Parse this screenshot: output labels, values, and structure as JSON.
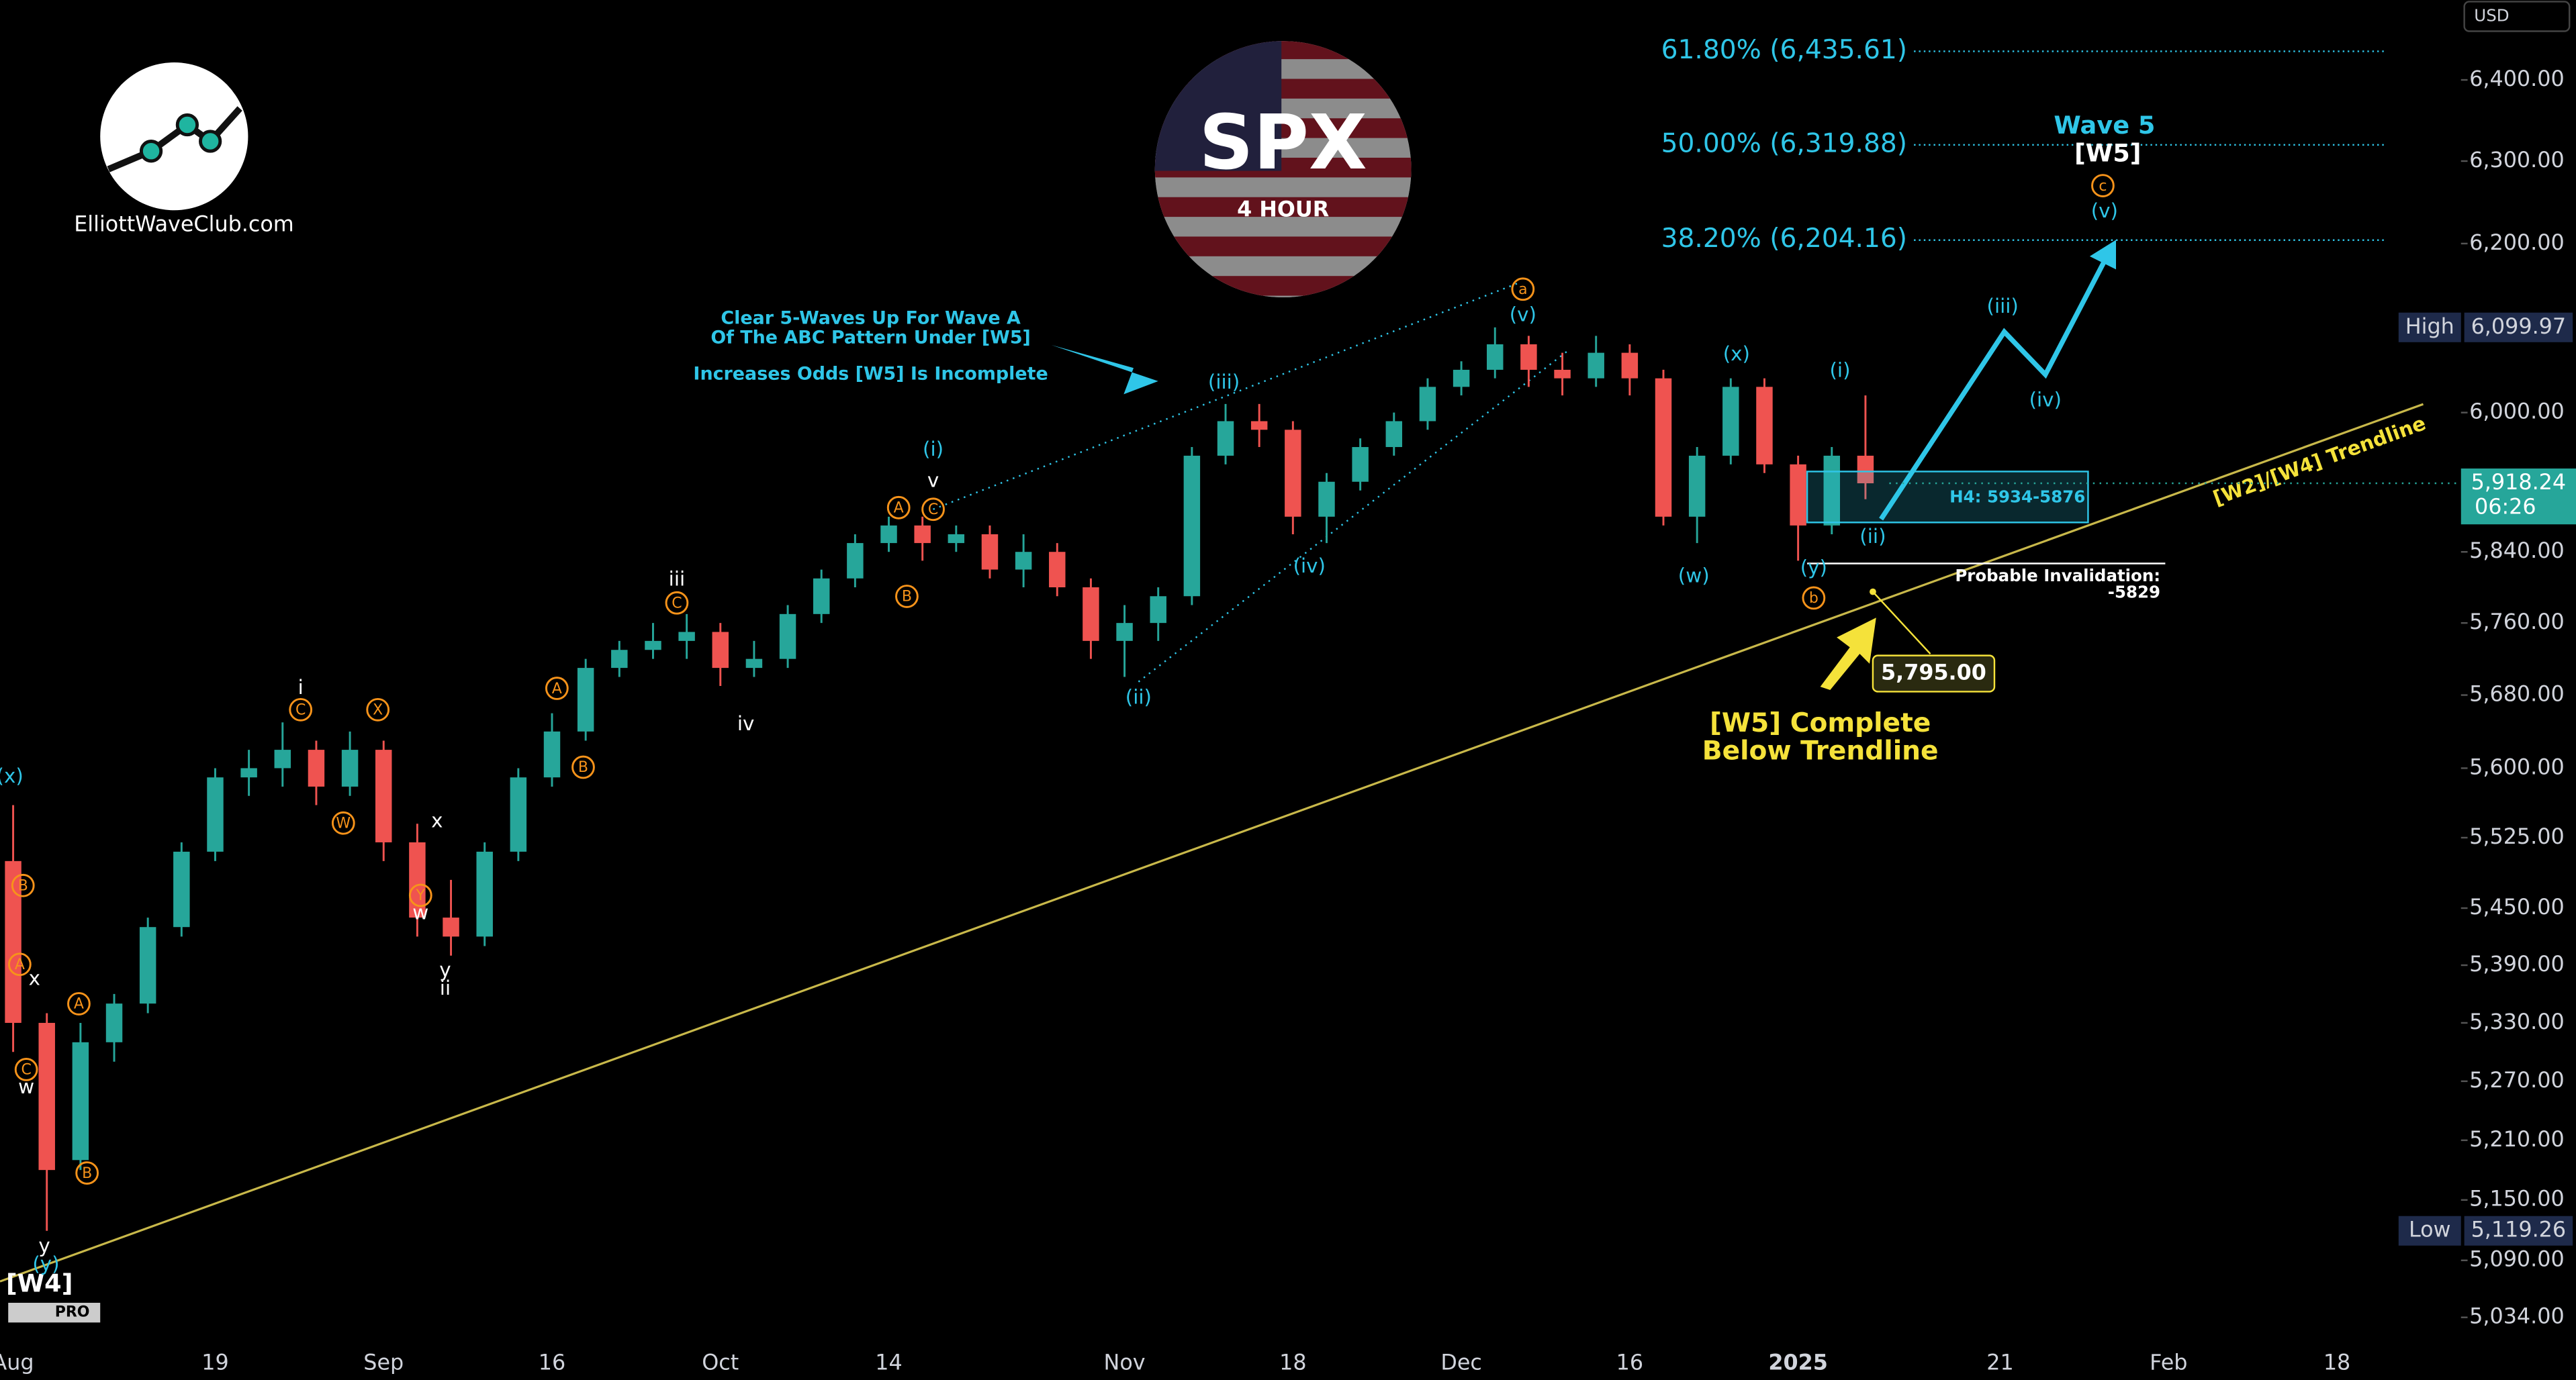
{
  "chart_data": {
    "type": "candlestick",
    "currency": "USD",
    "logo_text": "ElliottWaveClub.com",
    "badge_title": "SPX",
    "badge_subtitle": "4 HOUR",
    "platform_badge": "PRO",
    "log_scale": true,
    "ylim": [
      5013,
      6500
    ],
    "yticks": [
      {
        "value": 6400,
        "label": "6,400.00"
      },
      {
        "value": 6300,
        "label": "6,300.00"
      },
      {
        "value": 6200,
        "label": "6,200.00"
      },
      {
        "value": 6000,
        "label": "6,000.00"
      },
      {
        "value": 5840,
        "label": "5,840.00"
      },
      {
        "value": 5760,
        "label": "5,760.00"
      },
      {
        "value": 5680,
        "label": "5,680.00"
      },
      {
        "value": 5600,
        "label": "5,600.00"
      },
      {
        "value": 5525,
        "label": "5,525.00"
      },
      {
        "value": 5450,
        "label": "5,450.00"
      },
      {
        "value": 5390,
        "label": "5,390.00"
      },
      {
        "value": 5330,
        "label": "5,330.00"
      },
      {
        "value": 5270,
        "label": "5,270.00"
      },
      {
        "value": 5210,
        "label": "5,210.00"
      },
      {
        "value": 5150,
        "label": "5,150.00"
      },
      {
        "value": 5090,
        "label": "5,090.00"
      },
      {
        "value": 5034,
        "label": "5,034.00"
      }
    ],
    "categories": [
      "Aug",
      null,
      null,
      null,
      null,
      null,
      "19",
      null,
      null,
      null,
      null,
      "Sep",
      null,
      null,
      null,
      null,
      "16",
      null,
      null,
      null,
      null,
      "Oct",
      null,
      null,
      null,
      null,
      "14",
      null,
      null,
      null,
      null,
      null,
      null,
      "Nov",
      null,
      null,
      null,
      null,
      "18",
      null,
      null,
      null,
      null,
      "Dec",
      null,
      null,
      null,
      null,
      "16",
      null,
      null,
      null,
      null,
      "2025",
      null,
      null,
      null,
      null,
      null,
      "21",
      null,
      null,
      null,
      null,
      "Feb",
      null,
      null,
      null,
      null,
      "18"
    ],
    "up_color": "#26a69a",
    "down_color": "#ef5350",
    "open": [
      5500,
      5330,
      5190,
      5310,
      5350,
      5430,
      5510,
      5590,
      5600,
      5620,
      5580,
      5620,
      5520,
      5440,
      5420,
      5510,
      5590,
      5640,
      5710,
      5730,
      5740,
      5750,
      5710,
      5720,
      5770,
      5810,
      5850,
      5870,
      5850,
      5860,
      5820,
      5840,
      5800,
      5740,
      5760,
      5790,
      5950,
      5990,
      5980,
      5880,
      5920,
      5960,
      5990,
      6030,
      6050,
      6080,
      6050,
      6040,
      6070,
      6040,
      5880,
      5950,
      6030,
      5940,
      5870,
      5950,
      null,
      null,
      null,
      null,
      null,
      null,
      null,
      null,
      null,
      null,
      null,
      null,
      null,
      null
    ],
    "high": [
      5560,
      5340,
      5330,
      5360,
      5440,
      5520,
      5600,
      5620,
      5650,
      5630,
      5640,
      5630,
      5540,
      5480,
      5520,
      5600,
      5660,
      5720,
      5740,
      5760,
      5770,
      5760,
      5740,
      5780,
      5820,
      5860,
      5880,
      5880,
      5870,
      5870,
      5860,
      5850,
      5810,
      5780,
      5800,
      5960,
      6010,
      6010,
      5990,
      5930,
      5970,
      6000,
      6040,
      6060,
      6099.97,
      6090,
      6070,
      6090,
      6080,
      6050,
      5960,
      6040,
      6040,
      5950,
      5960,
      6020,
      null,
      null,
      null,
      null,
      null,
      null,
      null,
      null,
      null,
      null,
      null,
      null,
      null,
      null
    ],
    "low": [
      5300,
      5119.26,
      5180,
      5290,
      5340,
      5420,
      5500,
      5570,
      5580,
      5560,
      5570,
      5500,
      5420,
      5400,
      5410,
      5500,
      5580,
      5630,
      5700,
      5720,
      5720,
      5690,
      5700,
      5710,
      5760,
      5800,
      5840,
      5830,
      5840,
      5810,
      5800,
      5790,
      5720,
      5700,
      5740,
      5780,
      5940,
      5960,
      5860,
      5850,
      5910,
      5950,
      5980,
      6020,
      6040,
      6030,
      6020,
      6030,
      6020,
      5870,
      5850,
      5940,
      5930,
      5830,
      5860,
      5900,
      null,
      null,
      null,
      null,
      null,
      null,
      null,
      null,
      null,
      null,
      null,
      null,
      null,
      null
    ],
    "close": [
      5330,
      5180,
      5310,
      5350,
      5430,
      5510,
      5590,
      5600,
      5620,
      5580,
      5620,
      5520,
      5440,
      5420,
      5510,
      5590,
      5640,
      5710,
      5730,
      5740,
      5750,
      5710,
      5720,
      5770,
      5810,
      5850,
      5870,
      5850,
      5860,
      5820,
      5840,
      5800,
      5740,
      5760,
      5790,
      5950,
      5990,
      5980,
      5880,
      5920,
      5960,
      5990,
      6030,
      6050,
      6080,
      6050,
      6040,
      6070,
      6040,
      5880,
      5950,
      6030,
      5940,
      5870,
      5950,
      5918.24,
      null,
      null,
      null,
      null,
      null,
      null,
      null,
      null,
      null,
      null,
      null,
      null,
      null,
      null
    ],
    "fib_levels": [
      {
        "value": 6435.61,
        "label": "61.80% (6,435.61)"
      },
      {
        "value": 6319.88,
        "label": "50.00% (6,319.88)"
      },
      {
        "value": 6204.16,
        "label": "38.20% (6,204.16)"
      }
    ],
    "high_marker": {
      "name": "High",
      "price": {
        "value": 6099.97,
        "label": "6,099.97"
      }
    },
    "low_marker": {
      "name": "Low",
      "price": {
        "value": 5119.26,
        "label": "5,119.26"
      }
    },
    "last_price": {
      "price": {
        "value": 5918.24,
        "label": "5,918.24"
      },
      "countdown": "06:26"
    },
    "target": {
      "value": 5795,
      "label": "5,795.00"
    },
    "annotations": [
      "B",
      "A",
      "C",
      "A",
      "B",
      "C",
      "X",
      "W",
      "Y",
      "A",
      "B",
      "C",
      "A",
      "C",
      "B",
      "a",
      "b",
      "c",
      "x",
      "w",
      "y",
      "i",
      "x",
      "w",
      "y",
      "ii",
      "iii",
      "iv",
      "v",
      "[W4]",
      "[W5]",
      "(x)",
      "(y)",
      "(i)",
      "(iii)",
      "(ii)",
      "(iv)",
      "(v)",
      "(w)",
      "(x)",
      "(i)",
      "(ii)",
      "(y)",
      "(iii)",
      "(iv)",
      "(v)",
      "Wave 5"
    ],
    "note_lines": [
      "Clear 5-Waves Up For Wave A",
      "Of The ABC Pattern Under [W5]",
      "Increases Odds [W5] Is Incomplete"
    ],
    "conclusion": [
      "[W5] Complete",
      "Below Trendline"
    ],
    "trendline_label": "[W2]/[W4] Trendline",
    "zone_label": "H4: 5934-5876",
    "invalidation": [
      "Probable Invalidation:",
      "-5829"
    ]
  }
}
